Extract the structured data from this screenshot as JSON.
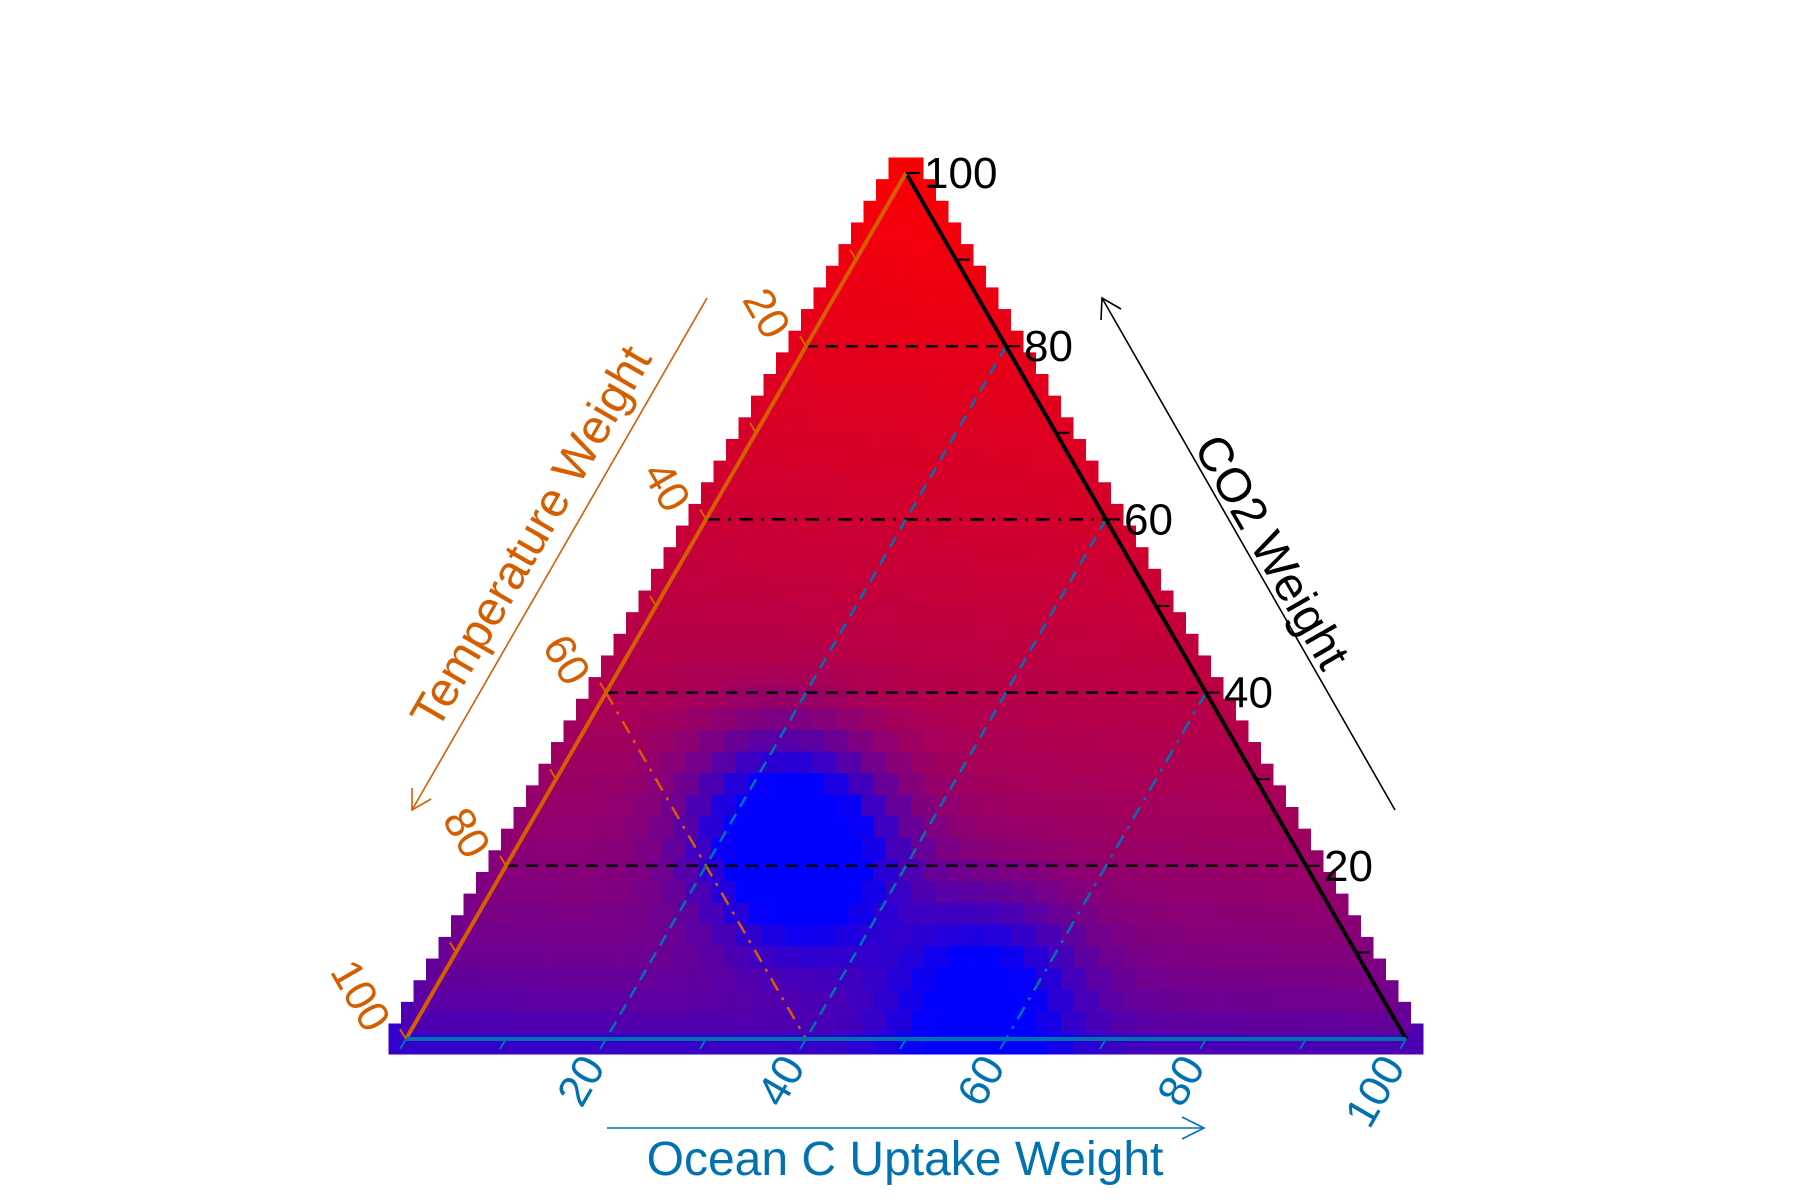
{
  "chart_data": {
    "type": "ternary-heatmap",
    "grid_step": 2.5,
    "axes": {
      "co2": {
        "title": "CO2 Weight",
        "ticks": [
          20,
          40,
          60,
          80,
          100
        ],
        "tick_labels": [
          "20",
          "40",
          "60",
          "80",
          "100"
        ],
        "color": "#000000"
      },
      "temperature": {
        "title": "Temperature Weight",
        "ticks": [
          20,
          40,
          60,
          80,
          100
        ],
        "tick_labels": [
          "20",
          "40",
          "60",
          "80",
          "100"
        ],
        "color": "#d55e00"
      },
      "ocean": {
        "title": "Ocean C Uptake Weight",
        "ticks": [
          20,
          40,
          60,
          80,
          100
        ],
        "tick_labels": [
          "20",
          "40",
          "60",
          "80",
          "100"
        ],
        "color": "#0072b2"
      }
    },
    "reference_lines": [
      {
        "axis": "co2",
        "value": 20,
        "style": "dashed",
        "color": "#000000"
      },
      {
        "axis": "co2",
        "value": 40,
        "style": "dashed",
        "color": "#000000"
      },
      {
        "axis": "co2",
        "value": 60,
        "style": "dashdot",
        "color": "#000000"
      },
      {
        "axis": "co2",
        "value": 80,
        "style": "dashed",
        "color": "#000000"
      },
      {
        "axis": "temperature",
        "value": 60,
        "style": "dashdot",
        "color": "#d55e00"
      },
      {
        "axis": "ocean",
        "value": 20,
        "style": "dashed",
        "color": "#0072b2"
      },
      {
        "axis": "ocean",
        "value": 40,
        "style": "dashed",
        "color": "#0072b2"
      },
      {
        "axis": "ocean",
        "value": 60,
        "style": "dashdot",
        "color": "#0072b2"
      }
    ],
    "color_scale": {
      "low": "#0000ff",
      "high": "#ff0000"
    },
    "blue_hotspots": [
      {
        "co2": 26,
        "temperature": 50,
        "ocean": 24
      },
      {
        "co2": 20,
        "temperature": 50,
        "ocean": 30
      },
      {
        "co2": 6,
        "temperature": 40,
        "ocean": 54
      }
    ]
  }
}
